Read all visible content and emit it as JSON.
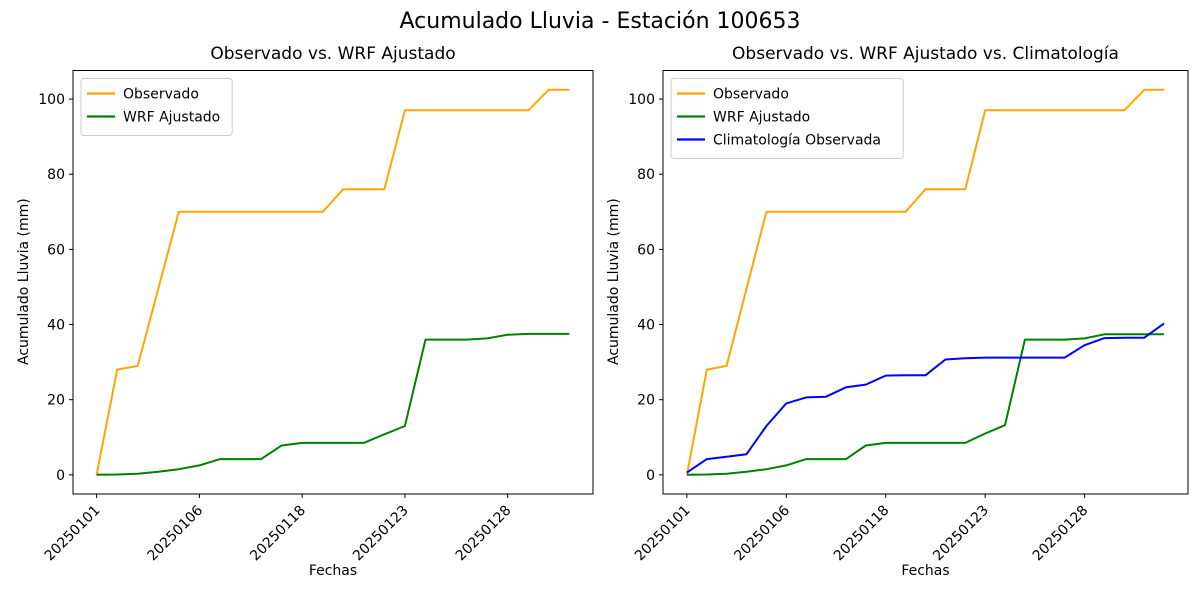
{
  "figure": {
    "title": "Acumulado Lluvia - Estación 100653",
    "background": "#ffffff"
  },
  "chart_data": [
    {
      "type": "line",
      "title": "Observado vs. WRF Ajustado",
      "xlabel": "Fechas",
      "ylabel": "Acumulado Lluvia (mm)",
      "x_tick_positions": [
        0,
        5,
        10,
        15,
        20
      ],
      "x_tick_labels": [
        "20250101",
        "20250106",
        "20250118",
        "20250123",
        "20250128"
      ],
      "y_ticks": [
        0,
        20,
        40,
        60,
        80,
        100
      ],
      "xlim": [
        -1.15,
        24.15
      ],
      "ylim": [
        -5.1,
        107.6
      ],
      "grid": false,
      "legend_position": "upper-left",
      "x": [
        0,
        1,
        2,
        3,
        4,
        5,
        6,
        7,
        8,
        9,
        10,
        11,
        12,
        13,
        14,
        15,
        16,
        17,
        18,
        19,
        20,
        21,
        22,
        23
      ],
      "series": [
        {
          "name": "Observado",
          "key": "observado",
          "color": "#FFA500",
          "values": [
            0,
            28,
            29,
            49.5,
            70,
            70,
            70,
            70,
            70,
            70,
            70,
            70,
            76,
            76,
            76,
            97,
            97,
            97,
            97,
            97,
            97,
            97,
            102.5,
            102.5
          ]
        },
        {
          "name": "WRF Ajustado",
          "key": "wrf-ajustado",
          "color": "#008000",
          "values": [
            0,
            0.1,
            0.3,
            0.8,
            1.5,
            2.5,
            4.2,
            4.2,
            4.2,
            7.8,
            8.5,
            8.5,
            8.5,
            8.5,
            10.8,
            13,
            36,
            36,
            36,
            36.3,
            37.3,
            37.5,
            37.5,
            37.5
          ]
        }
      ]
    },
    {
      "type": "line",
      "title": "Observado vs. WRF Ajustado vs. Climatología",
      "xlabel": "Fechas",
      "ylabel": "Acumulado Lluvia (mm)",
      "x_tick_positions": [
        0,
        5,
        10,
        15,
        20
      ],
      "x_tick_labels": [
        "20250101",
        "20250106",
        "20250118",
        "20250123",
        "20250128"
      ],
      "y_ticks": [
        0,
        20,
        40,
        60,
        80,
        100
      ],
      "xlim": [
        -1.2,
        25.2
      ],
      "ylim": [
        -5.1,
        107.6
      ],
      "grid": false,
      "legend_position": "upper-left",
      "x": [
        0,
        1,
        2,
        3,
        4,
        5,
        6,
        7,
        8,
        9,
        10,
        11,
        12,
        13,
        14,
        15,
        16,
        17,
        18,
        19,
        20,
        21,
        22,
        23,
        24
      ],
      "series": [
        {
          "name": "Observado",
          "key": "observado",
          "color": "#FFA500",
          "values": [
            0,
            28,
            29,
            49.5,
            70,
            70,
            70,
            70,
            70,
            70,
            70,
            70,
            76,
            76,
            76,
            97,
            97,
            97,
            97,
            97,
            97,
            97,
            97,
            102.5,
            102.5
          ]
        },
        {
          "name": "WRF Ajustado",
          "key": "wrf-ajustado",
          "color": "#008000",
          "values": [
            0,
            0.1,
            0.3,
            0.8,
            1.5,
            2.5,
            4.2,
            4.2,
            4.2,
            7.8,
            8.5,
            8.5,
            8.5,
            8.5,
            8.5,
            11,
            13.2,
            36,
            36,
            36,
            36.3,
            37.4,
            37.4,
            37.4,
            37.4
          ]
        },
        {
          "name": "Climatología Observada",
          "key": "climatologia-observada",
          "color": "#0000FF",
          "values": [
            0.6,
            4.2,
            4.8,
            5.5,
            13,
            19,
            20.6,
            20.8,
            23.3,
            24,
            26.4,
            26.5,
            26.5,
            30.7,
            31,
            31.2,
            31.2,
            31.2,
            31.2,
            31.2,
            34.5,
            36.4,
            36.5,
            36.5,
            40.3
          ]
        }
      ]
    }
  ]
}
